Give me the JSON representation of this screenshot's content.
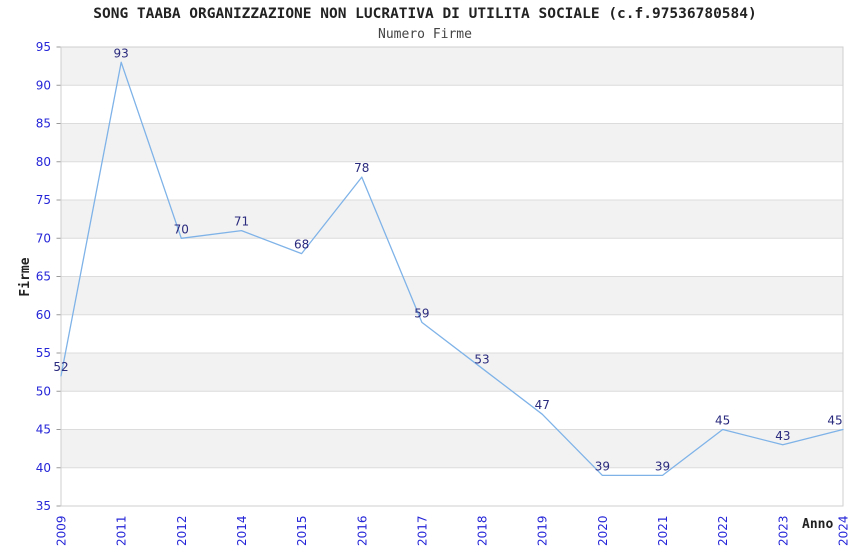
{
  "chart_data": {
    "type": "line",
    "title": "SONG TAABA ORGANIZZAZIONE NON LUCRATIVA DI UTILITA SOCIALE (c.f.97536780584)",
    "subtitle": "Numero Firme",
    "xlabel": "Anno",
    "ylabel": "Firme",
    "categories": [
      "2009",
      "2011",
      "2012",
      "2014",
      "2015",
      "2016",
      "2017",
      "2018",
      "2019",
      "2020",
      "2021",
      "2022",
      "2023",
      "2024"
    ],
    "values": [
      52,
      93,
      70,
      71,
      68,
      78,
      59,
      53,
      47,
      39,
      39,
      45,
      43,
      45
    ],
    "ylim": [
      35,
      95
    ],
    "ytick_step": 5,
    "grid": "horizontal-alternating-bands",
    "legend": "none",
    "colors": {
      "line": "#7fb3e8",
      "tick_label": "#2626d8",
      "data_label": "#2a2a7e",
      "band_gray": "#f2f2f2",
      "band_white": "#ffffff",
      "gridline": "#dcdcdc",
      "plot_border": "#cfcfcf",
      "tick_mark": "#999999"
    }
  }
}
